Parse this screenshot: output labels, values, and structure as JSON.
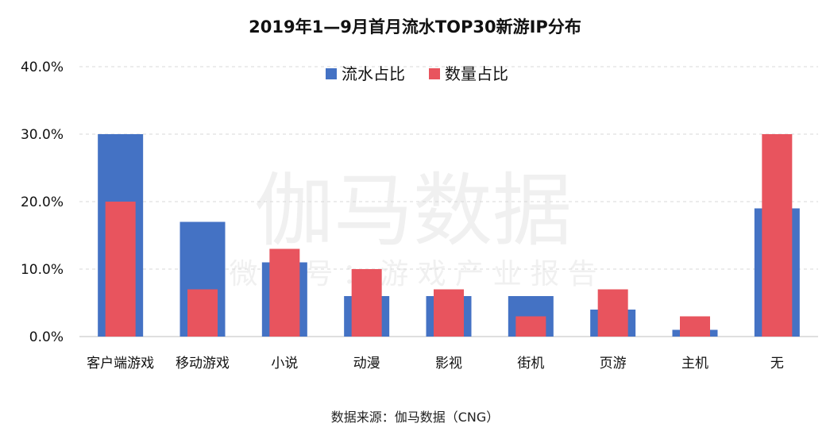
{
  "chart_data": {
    "type": "bar",
    "title": "2019年1—9月首月流水TOP30新游IP分布",
    "source": "数据来源：伽马数据（CNG）",
    "watermark": {
      "main": "伽马数据",
      "sub": "微 信 号 ： 游 戏 产 业 报 告"
    },
    "categories": [
      "客户端游戏",
      "移动游戏",
      "小说",
      "动漫",
      "影视",
      "街机",
      "页游",
      "主机",
      "无"
    ],
    "series": [
      {
        "name": "流水占比",
        "color": "#4472C4",
        "values": [
          30,
          17,
          11,
          6,
          6,
          6,
          4,
          1,
          19
        ]
      },
      {
        "name": "数量占比",
        "color": "#E8545E",
        "values": [
          20,
          7,
          13,
          10,
          7,
          3,
          7,
          3,
          30
        ]
      }
    ],
    "y_tick_labels": [
      "0.0%",
      "10.0%",
      "20.0%",
      "30.0%",
      "40.0%"
    ],
    "ylim": [
      0,
      40
    ],
    "ytick_step": 10,
    "grid": true,
    "legend_position": "top-center"
  }
}
